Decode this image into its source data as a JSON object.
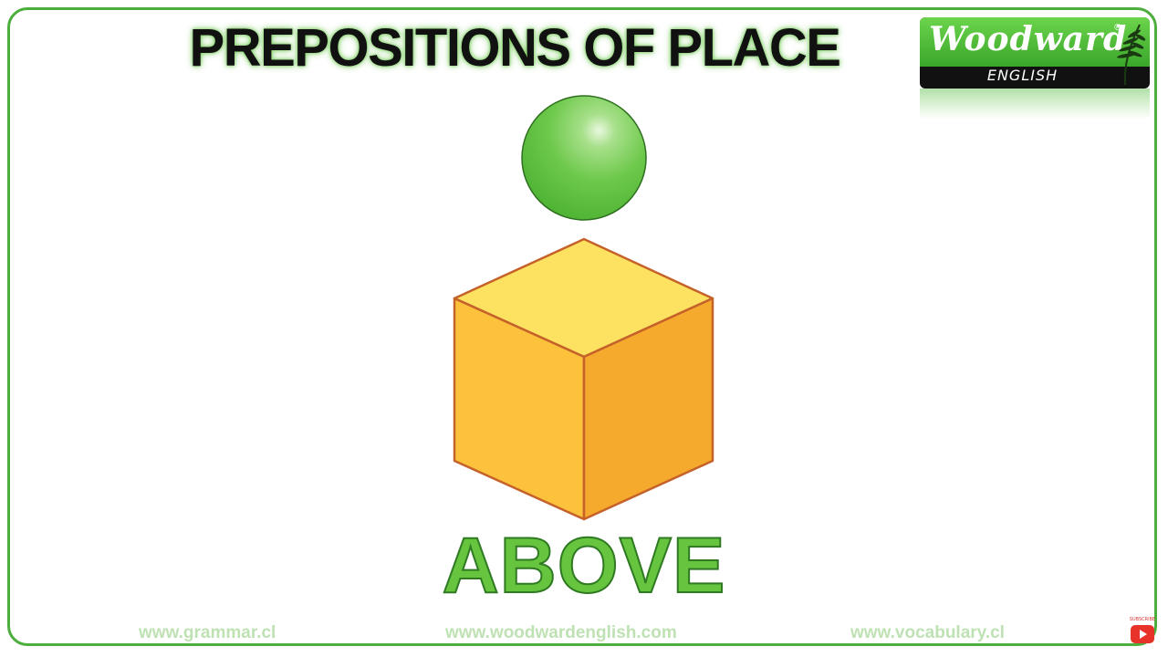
{
  "slide": {
    "title": "PREPOSITIONS OF PLACE",
    "word": "ABOVE"
  },
  "logo": {
    "name": "Woodward",
    "subtitle": "ENGLISH",
    "registered": "®"
  },
  "footer": {
    "left": "www.grammar.cl",
    "center": "www.woodwardenglish.com",
    "right": "www.vocabulary.cl"
  },
  "subscribe": {
    "label": "SUBSCRIBE"
  },
  "colors": {
    "frame_border": "#4cae3c",
    "word_fill": "#66c43f",
    "ball": "#6cc84a",
    "cube_top": "#fde160",
    "cube_left": "#fdc23c",
    "cube_right": "#f5aa2e",
    "cube_edge": "#c5622a"
  },
  "illustration": {
    "objects": [
      "green-ball",
      "yellow-cube"
    ],
    "relation": "ball above cube"
  }
}
